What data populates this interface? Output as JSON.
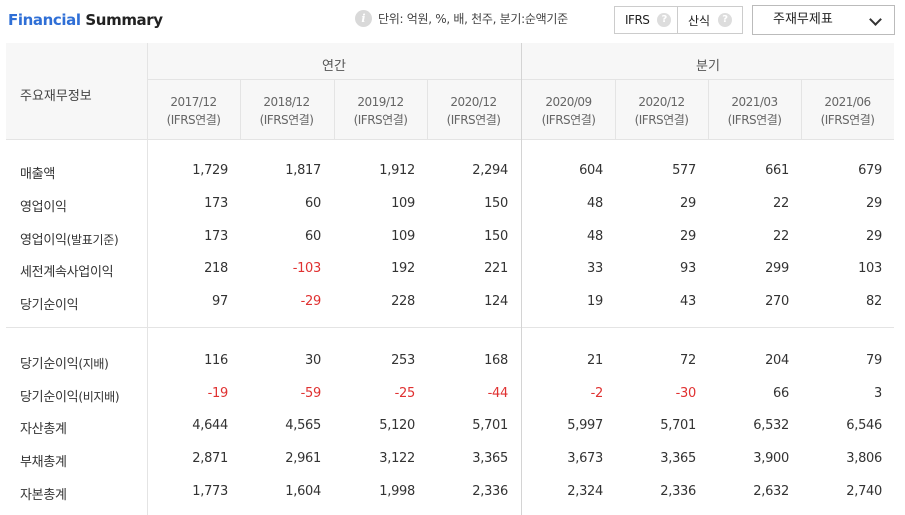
{
  "header": {
    "title_part1": "Financial",
    "title_part2": "Summary",
    "info_icon": "info-icon",
    "unit_text": "단위: 억원, %, 배, 천주, 분기:순액기준",
    "ifrs_label": "IFRS",
    "sanshik_label": "산식",
    "help_glyph": "?",
    "dropdown_value": "주재무제표"
  },
  "table": {
    "corner_label": "주요재무정보",
    "group_annual": "연간",
    "group_quarter": "분기",
    "periods": [
      {
        "date": "2017/12",
        "basis": "(IFRS연결)"
      },
      {
        "date": "2018/12",
        "basis": "(IFRS연결)"
      },
      {
        "date": "2019/12",
        "basis": "(IFRS연결)"
      },
      {
        "date": "2020/12",
        "basis": "(IFRS연결)"
      },
      {
        "date": "2020/09",
        "basis": "(IFRS연결)"
      },
      {
        "date": "2020/12",
        "basis": "(IFRS연결)"
      },
      {
        "date": "2021/03",
        "basis": "(IFRS연결)"
      },
      {
        "date": "2021/06",
        "basis": "(IFRS연결)"
      }
    ],
    "rows": [
      {
        "name": "매출액",
        "sub": "",
        "values": [
          "1,729",
          "1,817",
          "1,912",
          "2,294",
          "604",
          "577",
          "661",
          "679"
        ]
      },
      {
        "name": "영업이익",
        "sub": "",
        "values": [
          "173",
          "60",
          "109",
          "150",
          "48",
          "29",
          "22",
          "29"
        ]
      },
      {
        "name": "영업이익",
        "sub": "(발표기준)",
        "values": [
          "173",
          "60",
          "109",
          "150",
          "48",
          "29",
          "22",
          "29"
        ]
      },
      {
        "name": "세전계속사업이익",
        "sub": "",
        "values": [
          "218",
          "-103",
          "192",
          "221",
          "33",
          "93",
          "299",
          "103"
        ]
      },
      {
        "name": "당기순이익",
        "sub": "",
        "values": [
          "97",
          "-29",
          "228",
          "124",
          "19",
          "43",
          "270",
          "82"
        ]
      },
      {
        "name": "당기순이익",
        "sub": "(지배)",
        "values": [
          "116",
          "30",
          "253",
          "168",
          "21",
          "72",
          "204",
          "79"
        ]
      },
      {
        "name": "당기순이익",
        "sub": "(비지배)",
        "values": [
          "-19",
          "-59",
          "-25",
          "-44",
          "-2",
          "-30",
          "66",
          "3"
        ]
      },
      {
        "name": "자산총계",
        "sub": "",
        "values": [
          "4,644",
          "4,565",
          "5,120",
          "5,701",
          "5,997",
          "5,701",
          "6,532",
          "6,546"
        ]
      },
      {
        "name": "부채총계",
        "sub": "",
        "values": [
          "2,871",
          "2,961",
          "3,122",
          "3,365",
          "3,673",
          "3,365",
          "3,900",
          "3,806"
        ]
      },
      {
        "name": "자본총계",
        "sub": "",
        "values": [
          "1,773",
          "1,604",
          "1,998",
          "2,336",
          "2,324",
          "2,336",
          "2,632",
          "2,740"
        ]
      }
    ],
    "negative_color": "#e03131",
    "accent_color": "#2f6fd6"
  }
}
